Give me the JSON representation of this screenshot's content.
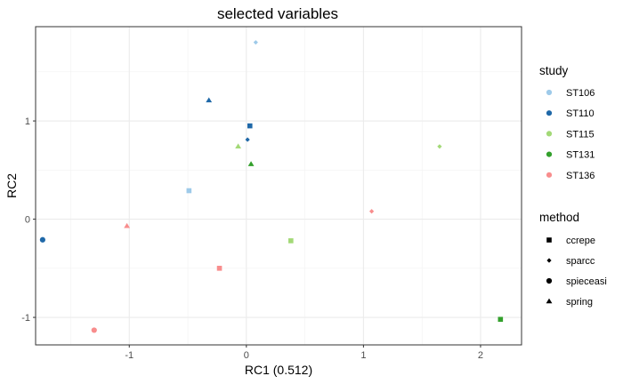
{
  "chart_data": {
    "type": "scatter",
    "title": "selected variables",
    "xlabel": "RC1 (0.512)",
    "ylabel": "RC2",
    "xlim": [
      -1.8,
      2.35
    ],
    "ylim": [
      -1.28,
      1.96
    ],
    "x_ticks": [
      -1,
      0,
      1,
      2
    ],
    "y_ticks": [
      -1,
      0,
      1
    ],
    "x_tick_labels": [
      "-1",
      "0",
      "1",
      "2"
    ],
    "y_tick_labels": [
      "-1",
      "0",
      "1"
    ],
    "grid": true,
    "legend_position": "right",
    "legends": {
      "study": {
        "title": "study",
        "entries": [
          {
            "label": "ST106",
            "color": "#9ECAE9"
          },
          {
            "label": "ST110",
            "color": "#1F68A8"
          },
          {
            "label": "ST115",
            "color": "#A3D977"
          },
          {
            "label": "ST131",
            "color": "#33A02C"
          },
          {
            "label": "ST136",
            "color": "#F88D8D"
          }
        ]
      },
      "method": {
        "title": "method",
        "entries": [
          {
            "label": "ccrepe",
            "shape": "square"
          },
          {
            "label": "sparcc",
            "shape": "diamond"
          },
          {
            "label": "spieceasi",
            "shape": "circle"
          },
          {
            "label": "spring",
            "shape": "triangle"
          }
        ]
      }
    },
    "points": [
      {
        "study": "ST106",
        "method": "sparcc",
        "x": 0.08,
        "y": 1.8
      },
      {
        "study": "ST106",
        "method": "ccrepe",
        "x": -0.49,
        "y": 0.29
      },
      {
        "study": "ST110",
        "method": "spring",
        "x": -0.32,
        "y": 1.21
      },
      {
        "study": "ST110",
        "method": "ccrepe",
        "x": 0.03,
        "y": 0.95
      },
      {
        "study": "ST110",
        "method": "sparcc",
        "x": 0.01,
        "y": 0.81
      },
      {
        "study": "ST110",
        "method": "spieceasi",
        "x": -1.74,
        "y": -0.21
      },
      {
        "study": "ST115",
        "method": "spring",
        "x": -0.07,
        "y": 0.74
      },
      {
        "study": "ST115",
        "method": "sparcc",
        "x": 1.65,
        "y": 0.74
      },
      {
        "study": "ST115",
        "method": "ccrepe",
        "x": 0.38,
        "y": -0.22
      },
      {
        "study": "ST131",
        "method": "spring",
        "x": 0.04,
        "y": 0.56
      },
      {
        "study": "ST131",
        "method": "ccrepe",
        "x": 2.17,
        "y": -1.02
      },
      {
        "study": "ST136",
        "method": "sparcc",
        "x": 1.07,
        "y": 0.08
      },
      {
        "study": "ST136",
        "method": "spring",
        "x": -1.02,
        "y": -0.07
      },
      {
        "study": "ST136",
        "method": "ccrepe",
        "x": -0.23,
        "y": -0.5
      },
      {
        "study": "ST136",
        "method": "spieceasi",
        "x": -1.3,
        "y": -1.13
      }
    ]
  }
}
